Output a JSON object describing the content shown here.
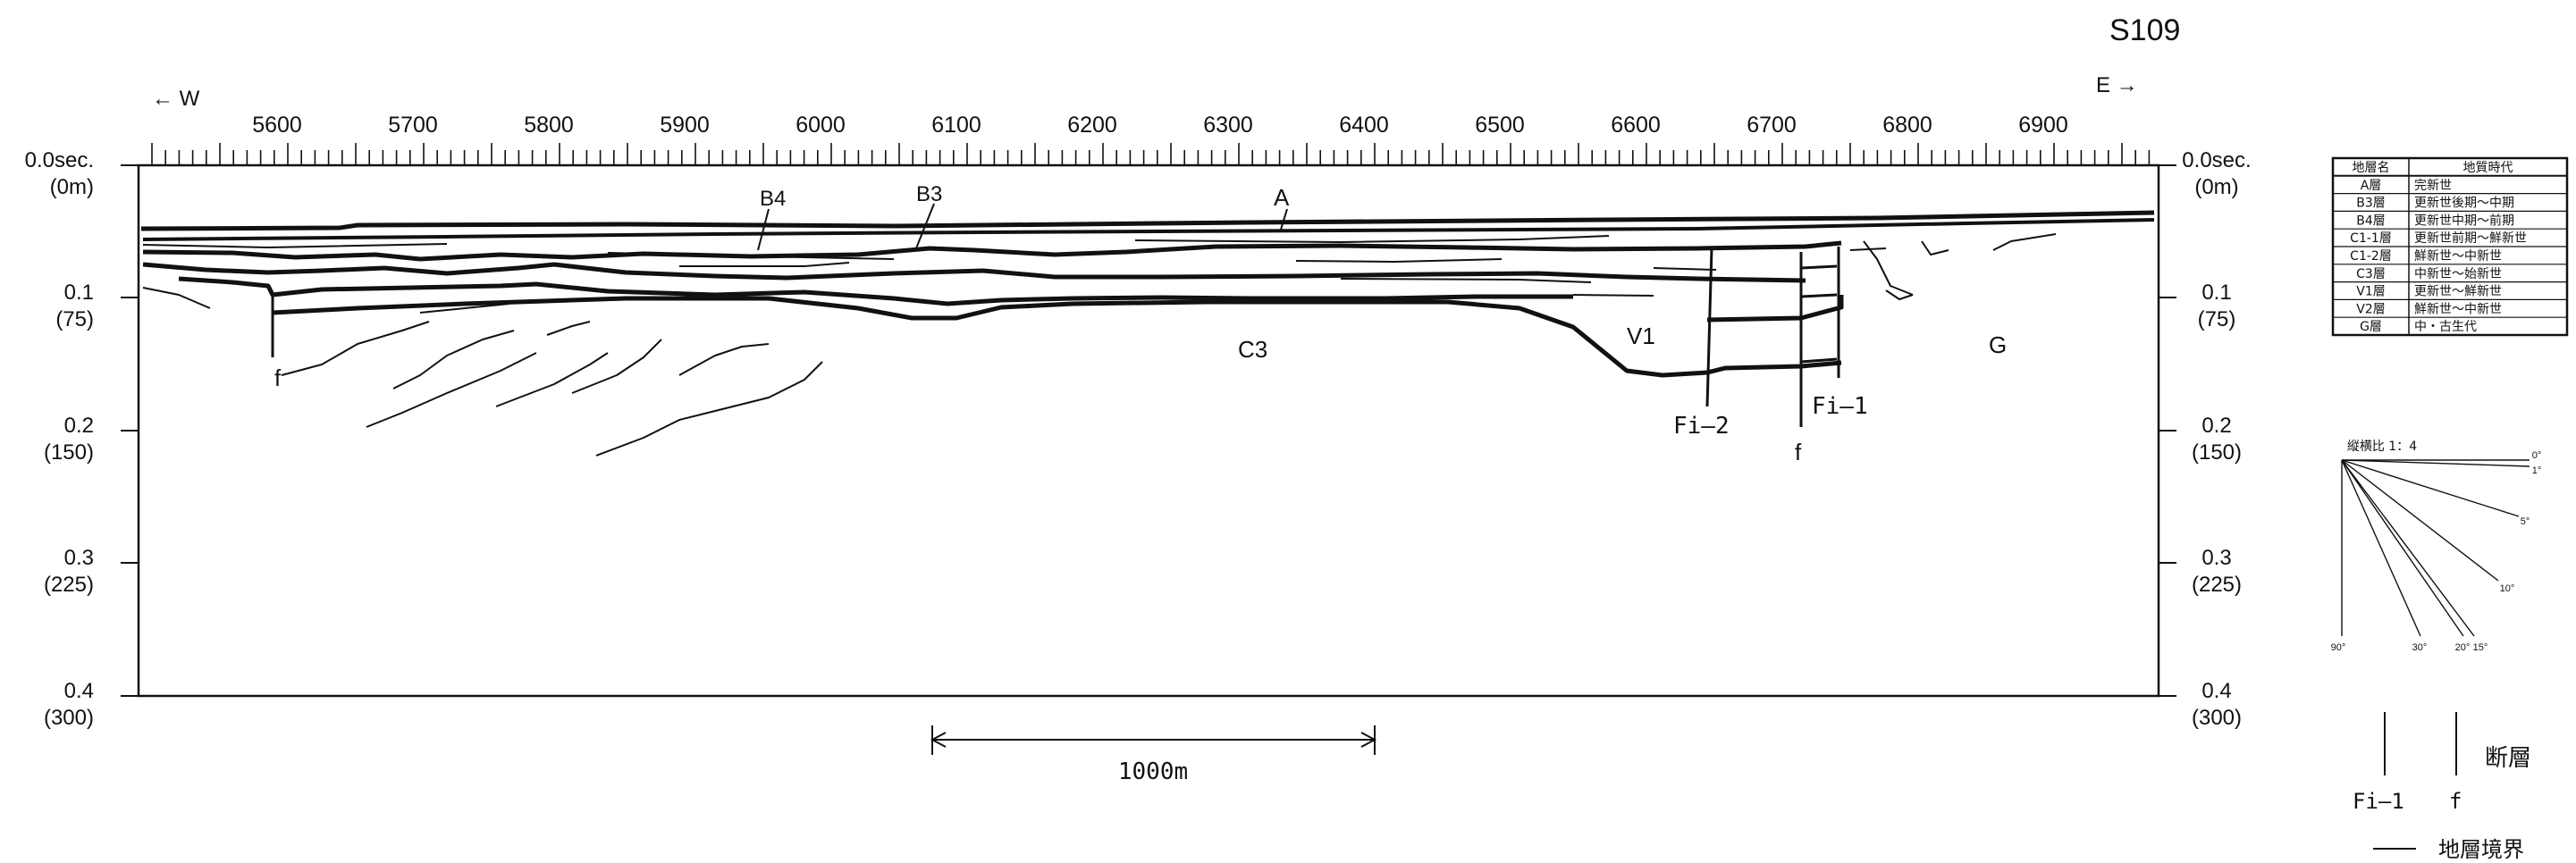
{
  "profile": {
    "line_id": "S109",
    "west_label": "← W",
    "east_label": "E →",
    "distance_ticks": [
      "5600",
      "5700",
      "5800",
      "5900",
      "6000",
      "6100",
      "6200",
      "6300",
      "6400",
      "6500",
      "6600",
      "6700",
      "6800",
      "6900"
    ],
    "time_axis": [
      {
        "sec": "0.0sec.",
        "depth": "(0m)"
      },
      {
        "sec": "0.1",
        "depth": "(75)"
      },
      {
        "sec": "0.2",
        "depth": "(150)"
      },
      {
        "sec": "0.3",
        "depth": "(225)"
      },
      {
        "sec": "0.4",
        "depth": "(300)"
      }
    ],
    "layer_labels": {
      "a": "A",
      "b3": "B3",
      "b4": "B4",
      "c3": "C3",
      "v1": "V1",
      "g": "G",
      "f_left": "f",
      "f_right": "f",
      "fi1": "Fi—1",
      "fi2": "Fi—2"
    },
    "scale_bar": "1000m"
  },
  "strata_table": {
    "headers": [
      "地層名",
      "地質時代"
    ],
    "rows": [
      [
        "A層",
        "完新世"
      ],
      [
        "B3層",
        "更新世後期～中期"
      ],
      [
        "B4層",
        "更新世中期～前期"
      ],
      [
        "C1-1層",
        "更新世前期～鮮新世"
      ],
      [
        "C1-2層",
        "鮮新世～中新世"
      ],
      [
        "C3層",
        "中新世～始新世"
      ],
      [
        "V1層",
        "更新世～鮮新世"
      ],
      [
        "V2層",
        "鮮新世～中新世"
      ],
      [
        "G層",
        "中・古生代"
      ]
    ]
  },
  "angle_legend": {
    "title": "縦横比 1：4",
    "labels": [
      "0°",
      "1°",
      "5°",
      "10°",
      "15°",
      "20°",
      "30°",
      "90°"
    ]
  },
  "symbol_legend": {
    "fault_label": "断層",
    "fault_symbols": [
      "Fi—1",
      "f"
    ],
    "boundary_label": "地層境界"
  }
}
